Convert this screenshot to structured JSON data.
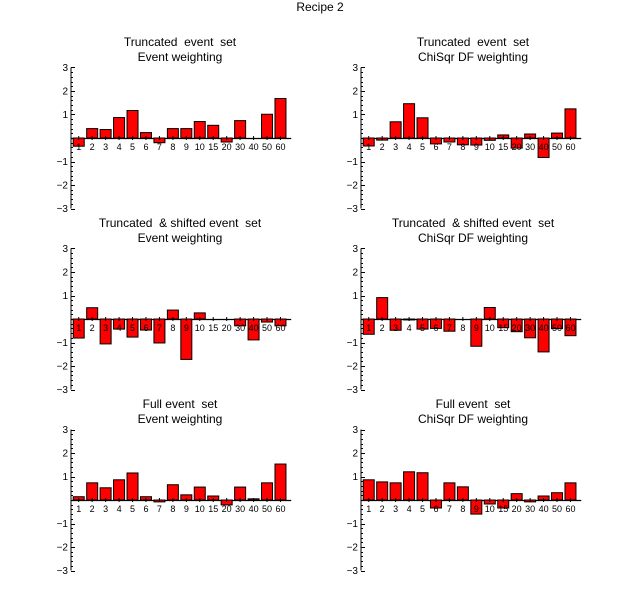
{
  "title": "Recipe 2",
  "chart_data": [
    {
      "type": "bar",
      "title": "Truncated  event  set",
      "subtitle": "Event weighting",
      "xlabel": "",
      "ylabel": "",
      "ylim": [
        -3,
        3
      ],
      "yticks": [
        3,
        2,
        1,
        -1,
        -2,
        -3
      ],
      "categories": [
        "1",
        "2",
        "3",
        "4",
        "5",
        "6",
        "7",
        "8",
        "9",
        "10",
        "15",
        "20",
        "30",
        "40",
        "50",
        "60"
      ],
      "values": [
        -0.35,
        0.4,
        0.36,
        0.87,
        1.17,
        0.23,
        -0.2,
        0.4,
        0.4,
        0.7,
        0.54,
        -0.17,
        0.74,
        0.0,
        1.01,
        1.68
      ]
    },
    {
      "type": "bar",
      "title": "Truncated  event  set",
      "subtitle": "ChiSqr DF weighting",
      "xlabel": "",
      "ylabel": "",
      "ylim": [
        -3,
        3
      ],
      "yticks": [
        3,
        2,
        1,
        -1,
        -2,
        -3
      ],
      "categories": [
        "1",
        "2",
        "3",
        "4",
        "5",
        "6",
        "7",
        "8",
        "9",
        "10",
        "15",
        "20",
        "30",
        "40",
        "50",
        "60"
      ],
      "values": [
        -0.34,
        -0.09,
        0.69,
        1.46,
        0.86,
        -0.25,
        -0.17,
        -0.29,
        -0.3,
        -0.1,
        0.13,
        -0.43,
        0.17,
        -0.83,
        0.21,
        1.24
      ]
    },
    {
      "type": "bar",
      "title": "Truncated  & shifted event  set",
      "subtitle": "Event weighting",
      "xlabel": "",
      "ylabel": "",
      "ylim": [
        -3,
        3
      ],
      "yticks": [
        3,
        2,
        1,
        -1,
        -2,
        -3
      ],
      "categories": [
        "1",
        "2",
        "3",
        "4",
        "5",
        "6",
        "7",
        "8",
        "9",
        "10",
        "15",
        "20",
        "30",
        "40",
        "50",
        "60"
      ],
      "values": [
        -0.81,
        0.48,
        -1.06,
        -0.43,
        -0.77,
        -0.47,
        -1.02,
        0.38,
        -1.72,
        0.26,
        0.0,
        0.0,
        -0.29,
        -0.89,
        -0.13,
        -0.29
      ]
    },
    {
      "type": "bar",
      "title": "Truncated  & shifted event  set",
      "subtitle": "ChiSqr DF weighting",
      "xlabel": "",
      "ylabel": "",
      "ylim": [
        -3,
        3
      ],
      "yticks": [
        3,
        2,
        1,
        -1,
        -2,
        -3
      ],
      "categories": [
        "1",
        "2",
        "3",
        "4",
        "5",
        "6",
        "7",
        "8",
        "9",
        "10",
        "15",
        "20",
        "30",
        "40",
        "50",
        "60"
      ],
      "values": [
        -0.65,
        0.91,
        -0.48,
        -0.04,
        -0.43,
        -0.4,
        -0.52,
        0.0,
        -1.16,
        0.49,
        -0.37,
        -0.54,
        -0.8,
        -1.4,
        -0.41,
        -0.71
      ]
    },
    {
      "type": "bar",
      "title": "Full event  set",
      "subtitle": "Event weighting",
      "xlabel": "",
      "ylabel": "",
      "ylim": [
        -3,
        3
      ],
      "yticks": [
        3,
        2,
        1,
        -1,
        -2,
        -3
      ],
      "categories": [
        "1",
        "2",
        "3",
        "4",
        "5",
        "6",
        "7",
        "8",
        "9",
        "10",
        "15",
        "20",
        "30",
        "40",
        "50",
        "60"
      ],
      "values": [
        0.14,
        0.73,
        0.52,
        0.86,
        1.15,
        0.14,
        -0.08,
        0.65,
        0.22,
        0.55,
        0.17,
        -0.21,
        0.55,
        0.05,
        0.73,
        1.53
      ]
    },
    {
      "type": "bar",
      "title": "Full event  set",
      "subtitle": "ChiSqr DF weighting",
      "xlabel": "",
      "ylabel": "",
      "ylim": [
        -3,
        3
      ],
      "yticks": [
        3,
        2,
        1,
        -1,
        -2,
        -3
      ],
      "categories": [
        "1",
        "2",
        "3",
        "4",
        "5",
        "6",
        "7",
        "8",
        "9",
        "10",
        "15",
        "20",
        "30",
        "40",
        "50",
        "60"
      ],
      "values": [
        0.86,
        0.77,
        0.73,
        1.2,
        1.16,
        -0.34,
        0.73,
        0.56,
        -0.6,
        -0.17,
        -0.34,
        0.27,
        -0.08,
        0.17,
        0.31,
        0.73
      ]
    }
  ],
  "colors": {
    "bar_fill": "#ff0000",
    "bar_stroke": "#000000",
    "axis": "#000000"
  }
}
